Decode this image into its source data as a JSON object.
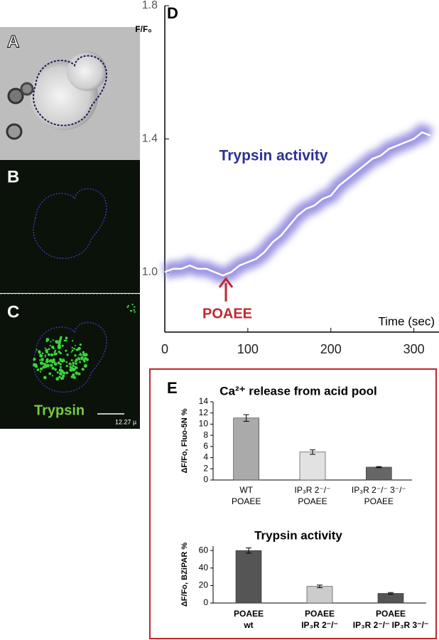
{
  "panels": {
    "labels": [
      "A",
      "B",
      "C",
      "D",
      "E"
    ],
    "trypsin_label": "Trypsin",
    "scale_bar": "12.27 µ"
  },
  "chart_data": [
    {
      "type": "line",
      "x_label": "Time (sec)",
      "y_label": "F/F₀",
      "annotations": [
        "Trypsin activity",
        "POAEE"
      ],
      "x": [
        0,
        10,
        20,
        30,
        40,
        50,
        60,
        70,
        80,
        90,
        100,
        110,
        120,
        130,
        140,
        150,
        160,
        170,
        180,
        190,
        200,
        210,
        220,
        230,
        240,
        250,
        260,
        270,
        280,
        290,
        300,
        310,
        320
      ],
      "series": [
        {
          "name": "Trypsin activity",
          "color": "#ffffff",
          "values": [
            1.0,
            1.01,
            1.01,
            1.02,
            1.01,
            1.01,
            1.0,
            0.99,
            1.0,
            1.02,
            1.03,
            1.04,
            1.06,
            1.09,
            1.11,
            1.14,
            1.17,
            1.19,
            1.2,
            1.22,
            1.23,
            1.26,
            1.28,
            1.3,
            1.32,
            1.34,
            1.35,
            1.37,
            1.38,
            1.39,
            1.4,
            1.42,
            1.41
          ]
        }
      ],
      "xlim": [
        0,
        320
      ],
      "xticks": [
        0,
        100,
        200,
        300
      ],
      "ylim": [
        0.82,
        1.8
      ],
      "yticks": [
        {
          "value": 1,
          "label": "1.0"
        },
        1.4,
        1.8
      ]
    },
    {
      "type": "bar",
      "title": "Ca²⁺ release from acid pool",
      "y_label": "ΔF/Fo, Fluo-5N %",
      "categories": [
        [
          "WT",
          "POAEE"
        ],
        [
          "IP₃R 2⁻/⁻",
          "POAEE"
        ],
        [
          "IP₃R 2⁻/⁻ 3⁻/⁻",
          "POAEE"
        ]
      ],
      "values": [
        11.1,
        5.0,
        2.3
      ],
      "errors": [
        0.6,
        0.4,
        0.1
      ],
      "colors": [
        "#aaaaaa",
        "#e2e2e2",
        "#666666"
      ],
      "ylim": [
        0,
        14
      ],
      "yticks": [
        0,
        2,
        4,
        6,
        8,
        10,
        12,
        14
      ]
    },
    {
      "type": "bar",
      "title": "Trypsin activity",
      "y_label": "ΔF/Fo, BZiPAR %",
      "categories": [
        [
          "POAEE",
          "wt"
        ],
        [
          "POAEE",
          "IP₃R 2⁻/⁻"
        ],
        [
          "POAEE",
          "IP₃R 2⁻/⁻ IP₃R 3⁻/⁻"
        ]
      ],
      "values": [
        60,
        19,
        11
      ],
      "errors": [
        3,
        1.5,
        1
      ],
      "colors": [
        "#555555",
        "#cccccc",
        "#555555"
      ],
      "ylim": [
        0,
        65
      ],
      "yticks": [
        0,
        20,
        40,
        60
      ]
    }
  ]
}
